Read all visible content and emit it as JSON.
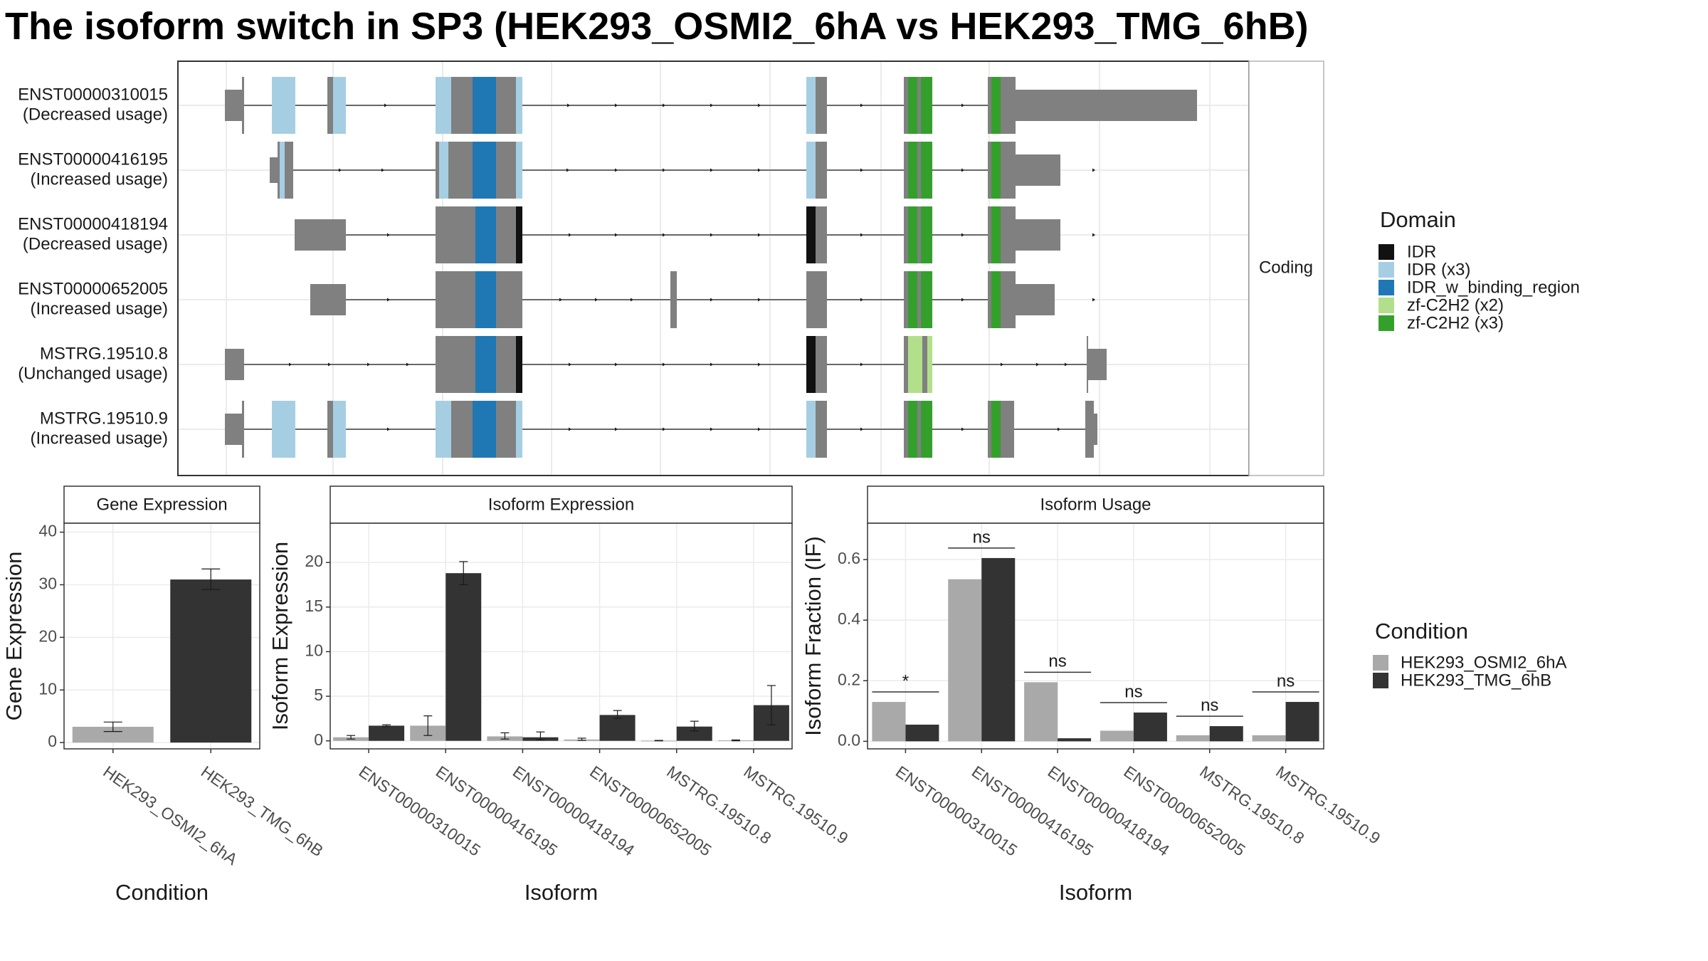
{
  "title": "The isoform switch in SP3 (HEK293_OSMI2_6hA vs HEK293_TMG_6hB)",
  "colors": {
    "exon": "#808080",
    "IDR": "#111111",
    "IDR_x3": "#a6cee3",
    "IDR_w_binding_region": "#1f78b4",
    "zf_C2H2_x2": "#b2df8a",
    "zf_C2H2_x3": "#33a02c",
    "cond1": "#a9a9a9",
    "cond2": "#333333"
  },
  "structure": {
    "facet_label": "Coding",
    "legend_title": "Domain",
    "legend_items": [
      {
        "label": "IDR",
        "color": "#111111"
      },
      {
        "label": "IDR (x3)",
        "color": "#a6cee3"
      },
      {
        "label": "IDR_w_binding_region",
        "color": "#1f78b4"
      },
      {
        "label": "zf-C2H2 (x2)",
        "color": "#b2df8a"
      },
      {
        "label": "zf-C2H2 (x3)",
        "color": "#33a02c"
      }
    ],
    "transcripts": [
      {
        "id": "ENST00000310015",
        "usage": "(Decreased usage)",
        "exons": [
          [
            0,
            26,
            0.7
          ],
          [
            26,
            60,
            1
          ],
          [
            60,
            82,
            1
          ],
          [
            100,
            202,
            1
          ],
          [
            202,
            208,
            1
          ],
          [
            324,
            364,
            1
          ],
          [
            384,
            434,
            1
          ],
          [
            435,
            590,
            0.7
          ]
        ],
        "segs": [
          [
            26,
            30,
            0
          ],
          [
            36,
            60,
            0
          ],
          [
            70,
            80,
            0
          ],
          [
            95,
            102,
            0
          ],
          [
            200,
            260,
            0
          ],
          [
            262,
            281,
            0
          ],
          [
            292,
            303,
            0
          ],
          [
            315,
            323,
            0
          ],
          [
            337,
            340,
            0
          ],
          [
            343,
            346,
            0
          ],
          [
            358,
            361,
            0
          ],
          [
            368,
            372,
            0
          ],
          [
            370,
            375,
            0
          ],
          [
            412,
            416,
            0
          ],
          [
            418,
            422,
            0
          ],
          [
            382,
            385,
            0
          ]
        ]
      },
      {
        "id": "ENST00000416195",
        "usage": "(Increased usage)",
        "exons": [
          [
            50,
            74,
            0.7
          ],
          [
            54,
            64,
            1
          ],
          [
            100,
            202,
            1
          ],
          [
            202,
            208,
            1
          ],
          [
            324,
            364,
            1
          ],
          [
            384,
            434,
            1
          ],
          [
            435,
            590,
            0.7
          ]
        ],
        "segs": [
          [
            56,
            60,
            0
          ],
          [
            62,
            66,
            0
          ],
          [
            100,
            102,
            0
          ],
          [
            202,
            207,
            0
          ],
          [
            206,
            260,
            0
          ],
          [
            262,
            281,
            0
          ],
          [
            324,
            326,
            0
          ],
          [
            326,
            331,
            0
          ],
          [
            337,
            340,
            0
          ],
          [
            343,
            346,
            0
          ],
          [
            358,
            361,
            0
          ],
          [
            368,
            372,
            0
          ],
          [
            370,
            375,
            0
          ],
          [
            412,
            416,
            0
          ],
          [
            418,
            422,
            0
          ],
          [
            382,
            385,
            0
          ]
        ]
      },
      {
        "id": "ENST00000418194",
        "usage": "(Decreased usage)",
        "exons": [
          [
            60,
            80,
            1
          ],
          [
            100,
            202,
            1
          ],
          [
            202,
            208,
            1
          ],
          [
            324,
            364,
            1
          ],
          [
            384,
            434,
            1
          ],
          [
            435,
            590,
            0.7
          ]
        ],
        "segs": [
          [
            200,
            211,
            0
          ],
          [
            226,
            235,
            0
          ],
          [
            337,
            340,
            0
          ],
          [
            343,
            346,
            0
          ],
          [
            358,
            361,
            0
          ],
          [
            368,
            372,
            0
          ],
          [
            370,
            375,
            0
          ],
          [
            412,
            416,
            0
          ],
          [
            418,
            422,
            0
          ],
          [
            382,
            385,
            0
          ]
        ]
      },
      {
        "id": "ENST00000652005",
        "usage": "(Increased usage)",
        "exons": [
          [
            60,
            80,
            1
          ],
          [
            100,
            202,
            1
          ],
          [
            202,
            208,
            1
          ],
          [
            262,
            266,
            1
          ],
          [
            324,
            364,
            1
          ],
          [
            384,
            434,
            1
          ],
          [
            435,
            590,
            0.7
          ]
        ],
        "segs": [
          [
            337,
            340,
            0
          ],
          [
            343,
            346,
            0
          ],
          [
            358,
            361,
            0
          ],
          [
            368,
            372,
            0
          ],
          [
            370,
            375,
            0
          ],
          [
            412,
            416,
            0
          ],
          [
            418,
            422,
            0
          ],
          [
            382,
            385,
            0
          ]
        ]
      },
      {
        "id": "MSTRG.19510.8",
        "usage": "(Unchanged usage)",
        "exons": [
          [
            0,
            26,
            1
          ],
          [
            100,
            202,
            1
          ],
          [
            202,
            208,
            1
          ],
          [
            324,
            364,
            1
          ],
          [
            385,
            434,
            1
          ],
          [
            435,
            450,
            1
          ],
          [
            450,
            464,
            0.7
          ]
        ],
        "segs": [
          [
            200,
            211,
            0
          ],
          [
            226,
            235,
            0
          ],
          [
            337,
            340,
            0
          ],
          [
            343,
            346,
            0
          ],
          [
            358,
            361,
            0
          ],
          [
            368,
            372,
            0
          ]
        ]
      },
      {
        "id": "MSTRG.19510.9",
        "usage": "(Increased usage)",
        "exons": [
          [
            0,
            26,
            0.7
          ],
          [
            26,
            60,
            1
          ],
          [
            60,
            82,
            1
          ],
          [
            100,
            202,
            1
          ],
          [
            202,
            208,
            1
          ],
          [
            324,
            364,
            1
          ],
          [
            384,
            434,
            1
          ],
          [
            450,
            454,
            1
          ],
          [
            454,
            460,
            0.7
          ]
        ],
        "segs": [
          [
            337,
            340,
            0
          ],
          [
            343,
            346,
            0
          ],
          [
            358,
            361,
            0
          ],
          [
            368,
            372,
            0
          ],
          [
            370,
            375,
            0
          ],
          [
            412,
            416,
            0
          ],
          [
            418,
            422,
            0
          ],
          [
            382,
            385,
            0
          ]
        ]
      }
    ]
  },
  "chart_data": [
    {
      "type": "bar",
      "title": "Gene Expression",
      "xlabel": "Condition",
      "ylabel": "Gene Expression",
      "categories": [
        "HEK293_OSMI2_6hA",
        "HEK293_TMG_6hB"
      ],
      "values": [
        3.0,
        31.0
      ],
      "error": [
        [
          2.1,
          3.9
        ],
        [
          29.1,
          33.0
        ]
      ],
      "ylim": [
        -1.2,
        41.7
      ],
      "yticks": [
        0,
        10,
        20,
        30,
        40
      ]
    },
    {
      "type": "bar",
      "title": "Isoform Expression",
      "xlabel": "Isoform",
      "ylabel": "Isoform Expression",
      "categories": [
        "ENST00000310015",
        "ENST00000416195",
        "ENST00000418194",
        "ENST00000652005",
        "MSTRG.19510.8",
        "MSTRG.19510.9"
      ],
      "series": [
        {
          "name": "HEK293_OSMI2_6hA",
          "values": [
            0.4,
            1.7,
            0.5,
            0.15,
            0.02,
            0.05
          ],
          "error": [
            [
              0.2,
              0.6
            ],
            [
              0.6,
              2.8
            ],
            [
              0.2,
              0.9
            ],
            [
              0.05,
              0.3
            ],
            [
              0.0,
              0.05
            ],
            [
              0.0,
              0.1
            ]
          ]
        },
        {
          "name": "HEK293_TMG_6hB",
          "values": [
            1.7,
            18.8,
            0.4,
            2.9,
            1.6,
            4.0
          ],
          "error": [
            [
              1.6,
              1.8
            ],
            [
              17.5,
              20.1
            ],
            [
              0.1,
              1.0
            ],
            [
              2.5,
              3.4
            ],
            [
              1.1,
              2.2
            ],
            [
              1.8,
              6.2
            ]
          ]
        }
      ],
      "ylim": [
        -0.9,
        24.4
      ],
      "yticks": [
        0,
        5,
        10,
        15,
        20
      ]
    },
    {
      "type": "bar",
      "title": "Isoform Usage",
      "xlabel": "Isoform",
      "ylabel": "Isoform Fraction (IF)",
      "categories": [
        "ENST00000310015",
        "ENST00000416195",
        "ENST00000418194",
        "ENST00000652005",
        "MSTRG.19510.8",
        "MSTRG.19510.9"
      ],
      "series": [
        {
          "name": "HEK293_OSMI2_6hA",
          "values": [
            0.13,
            0.535,
            0.195,
            0.035,
            0.02,
            0.02
          ]
        },
        {
          "name": "HEK293_TMG_6hB",
          "values": [
            0.055,
            0.605,
            0.01,
            0.095,
            0.05,
            0.13
          ]
        }
      ],
      "significance": [
        "*",
        "ns",
        "ns",
        "ns",
        "ns",
        "ns"
      ],
      "ylim": [
        -0.025,
        0.72
      ],
      "yticks": [
        0.0,
        0.2,
        0.4,
        0.6
      ],
      "ytick_labels": [
        "0.0",
        "0.2",
        "0.4",
        "0.6"
      ]
    }
  ],
  "condition_legend": {
    "title": "Condition",
    "items": [
      {
        "label": "HEK293_OSMI2_6hA",
        "color": "#a9a9a9"
      },
      {
        "label": "HEK293_TMG_6hB",
        "color": "#333333"
      }
    ]
  }
}
